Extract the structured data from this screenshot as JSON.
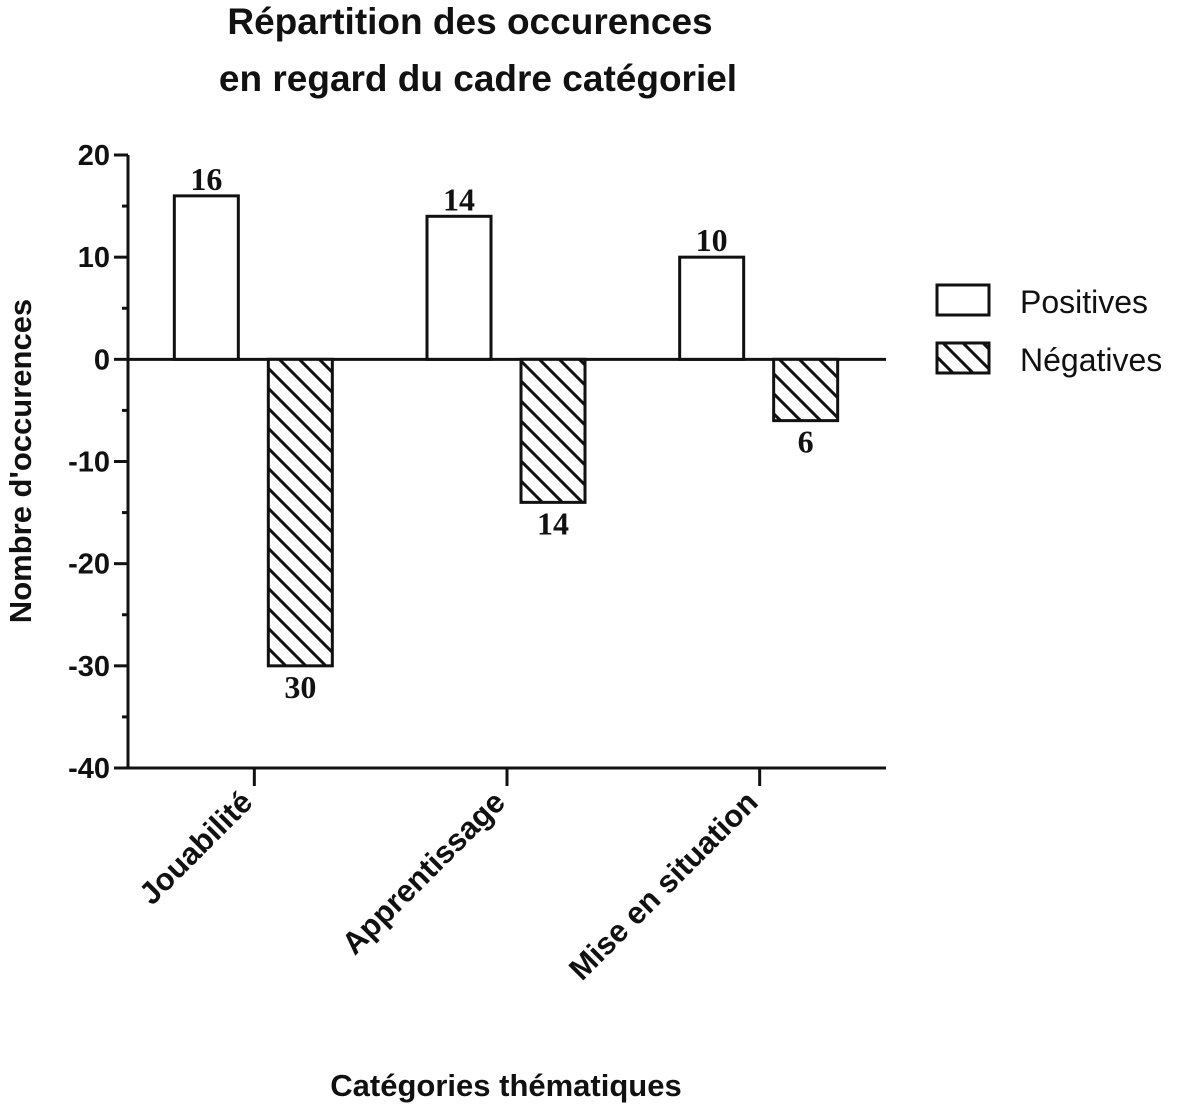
{
  "chart_data": {
    "type": "bar",
    "title_lines": [
      "Répartition des occurences",
      "en regard du cadre catégoriel"
    ],
    "xlabel": "Catégories thématiques",
    "ylabel": "Nombre d'occurences",
    "categories": [
      "Jouabilité",
      "Apprentissage",
      "Mise en situation"
    ],
    "series": [
      {
        "name": "Positives",
        "values": [
          16,
          14,
          10
        ],
        "data_labels": [
          "16",
          "14",
          "10"
        ],
        "pattern": "solid-white"
      },
      {
        "name": "Négatives",
        "values": [
          -30,
          -14,
          -6
        ],
        "data_labels": [
          "30",
          "14",
          "6"
        ],
        "pattern": "diagonal-hatch"
      }
    ],
    "ylim": [
      -40,
      20
    ],
    "yticks": [
      20,
      10,
      0,
      -10,
      -20,
      -30,
      -40
    ],
    "ytick_labels": [
      "20",
      "10",
      "0",
      "-10",
      "-20",
      "-30",
      "-40"
    ],
    "y_minor_step": 5,
    "grid": false,
    "legend_position": "right",
    "colors": {
      "bar_fill": "#ffffff",
      "stroke": "#111111",
      "background": "#ffffff"
    }
  }
}
